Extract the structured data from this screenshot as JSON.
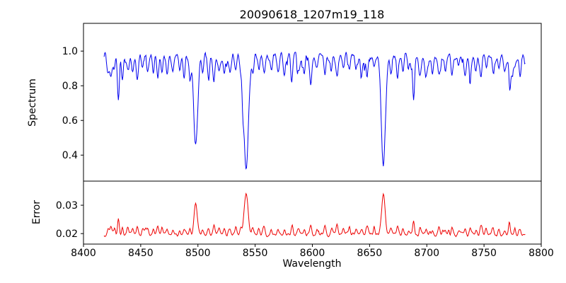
{
  "chart_data": {
    "type": "line",
    "title": "20090618_1207m19_118",
    "xlabel": "Wavelength",
    "xlim": [
      8400,
      8800
    ],
    "x_start": 8418,
    "x_end": 8786,
    "x_step": 0.5,
    "grid": false,
    "x_ticks": {
      "values": [
        8400,
        8450,
        8500,
        8550,
        8600,
        8650,
        8700,
        8750,
        8800
      ],
      "labels": [
        "8400",
        "8450",
        "8500",
        "8550",
        "8600",
        "8650",
        "8700",
        "8750",
        "8800"
      ]
    },
    "panels": [
      {
        "name": "spectrum",
        "ylabel": "Spectrum",
        "ylim": [
          0.25,
          1.16
        ],
        "y_ticks": {
          "values": [
            0.4,
            0.6,
            0.8,
            1.0
          ],
          "labels": [
            "0.4",
            "0.6",
            "0.8",
            "1.0"
          ]
        },
        "color": "#0000ee",
        "baseline": 0.975,
        "noise_amp": 0.05,
        "dip_noise_amp": 0.22
      },
      {
        "name": "error",
        "ylabel": "Error",
        "ylim": [
          0.0163,
          0.0385
        ],
        "y_ticks": {
          "values": [
            0.02,
            0.03
          ],
          "labels": [
            "0.02",
            "0.03"
          ]
        },
        "color": "#ee0000",
        "baseline": 0.0196,
        "noise_amp": 0.0012,
        "spike_noise_amp": 0.0035,
        "error_scale": 0.022
      }
    ],
    "major_absorption_lines": [
      {
        "center": 8498.0,
        "depth": 0.52,
        "sigma": 1.7
      },
      {
        "center": 8542.1,
        "depth": 0.67,
        "sigma": 2.0
      },
      {
        "center": 8662.1,
        "depth": 0.63,
        "sigma": 1.8
      }
    ],
    "minor_line_sigma": 0.9,
    "minor_absorption_lines_center_depth": [
      [
        8421.5,
        0.09
      ],
      [
        8424,
        0.13
      ],
      [
        8427,
        0.09
      ],
      [
        8430.5,
        0.25
      ],
      [
        8434,
        0.13
      ],
      [
        8438.5,
        0.1
      ],
      [
        8443,
        0.09
      ],
      [
        8447,
        0.13
      ],
      [
        8451.5,
        0.09
      ],
      [
        8456,
        0.08
      ],
      [
        8461,
        0.09
      ],
      [
        8465,
        0.14
      ],
      [
        8468.5,
        0.11
      ],
      [
        8473,
        0.09
      ],
      [
        8478,
        0.1
      ],
      [
        8484,
        0.08
      ],
      [
        8488,
        0.12
      ],
      [
        8493,
        0.09
      ],
      [
        8504,
        0.1
      ],
      [
        8509,
        0.08
      ],
      [
        8514,
        0.16
      ],
      [
        8518.5,
        0.12
      ],
      [
        8523,
        0.09
      ],
      [
        8528,
        0.1
      ],
      [
        8533,
        0.08
      ],
      [
        8537.5,
        0.09
      ],
      [
        8548,
        0.09
      ],
      [
        8553,
        0.08
      ],
      [
        8558,
        0.11
      ],
      [
        8564,
        0.09
      ],
      [
        8570,
        0.08
      ],
      [
        8575.5,
        0.09
      ],
      [
        8582,
        0.14
      ],
      [
        8588,
        0.1
      ],
      [
        8593,
        0.08
      ],
      [
        8598.5,
        0.16
      ],
      [
        8604,
        0.09
      ],
      [
        8611,
        0.1
      ],
      [
        8617,
        0.08
      ],
      [
        8621.5,
        0.13
      ],
      [
        8627,
        0.09
      ],
      [
        8632.5,
        0.08
      ],
      [
        8638,
        0.07
      ],
      [
        8643,
        0.09
      ],
      [
        8648,
        0.11
      ],
      [
        8654,
        0.08
      ],
      [
        8668.5,
        0.09
      ],
      [
        8674.5,
        0.12
      ],
      [
        8679,
        0.1
      ],
      [
        8684,
        0.08
      ],
      [
        8688.5,
        0.24
      ],
      [
        8694,
        0.11
      ],
      [
        8699.5,
        0.08
      ],
      [
        8705,
        0.09
      ],
      [
        8710.5,
        0.1
      ],
      [
        8716,
        0.08
      ],
      [
        8722,
        0.09
      ],
      [
        8728,
        0.07
      ],
      [
        8733.5,
        0.09
      ],
      [
        8738,
        0.1
      ],
      [
        8743,
        0.08
      ],
      [
        8747.5,
        0.11
      ],
      [
        8752,
        0.08
      ],
      [
        8758,
        0.12
      ],
      [
        8763,
        0.09
      ],
      [
        8768,
        0.07
      ],
      [
        8772.5,
        0.1
      ],
      [
        8777,
        0.08
      ],
      [
        8781.5,
        0.09
      ]
    ]
  }
}
